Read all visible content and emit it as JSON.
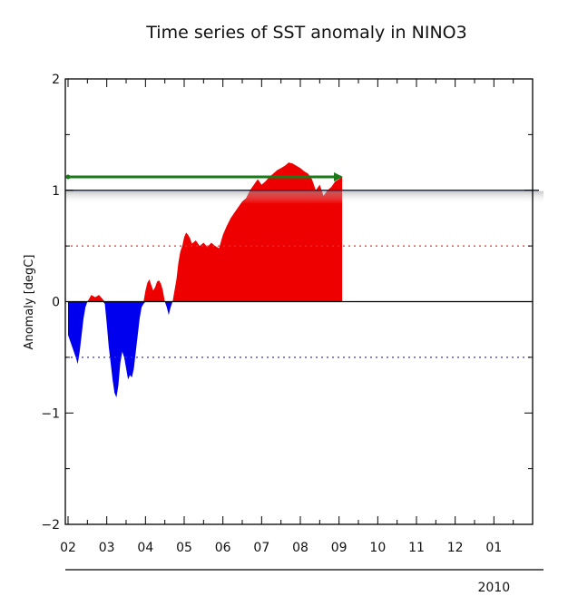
{
  "chart_data": {
    "type": "area",
    "title": "Time series of SST anomaly in NINO3",
    "xlabel": "",
    "ylabel": "Anomaly [degC]",
    "x_tick_labels": [
      "02",
      "03",
      "04",
      "05",
      "06",
      "07",
      "08",
      "09",
      "10",
      "11",
      "12",
      "01"
    ],
    "year_label": "2010",
    "y_ticks": [
      -2,
      -1,
      0,
      1,
      2
    ],
    "y_tick_labels": [
      "-2",
      "-1",
      "0",
      "1",
      "2"
    ],
    "xlim": [
      2.0,
      14.0
    ],
    "ylim": [
      -2,
      2
    ],
    "reference_lines": [
      {
        "y": 0.5,
        "style": "dotted",
        "color": "#e53030"
      },
      {
        "y": -0.5,
        "style": "dotted",
        "color": "#3030e0"
      },
      {
        "y": 1.0,
        "style": "solid",
        "color": "#1b2a50"
      }
    ],
    "arrow": {
      "x_start": 2.0,
      "x_end": 9.1,
      "y": 1.12,
      "color": "#1a7a1a"
    },
    "positive_color": "#ee0000",
    "negative_color": "#0000ee",
    "series": [
      {
        "values": [
          [
            2.0,
            -0.3
          ],
          [
            2.1,
            -0.4
          ],
          [
            2.2,
            -0.5
          ],
          [
            2.25,
            -0.56
          ],
          [
            2.3,
            -0.45
          ],
          [
            2.35,
            -0.3
          ],
          [
            2.4,
            -0.15
          ],
          [
            2.45,
            -0.05
          ],
          [
            2.5,
            0.0
          ],
          [
            2.55,
            0.03
          ],
          [
            2.6,
            0.06
          ],
          [
            2.7,
            0.04
          ],
          [
            2.8,
            0.06
          ],
          [
            2.9,
            0.02
          ],
          [
            2.95,
            -0.02
          ],
          [
            3.0,
            -0.2
          ],
          [
            3.05,
            -0.4
          ],
          [
            3.1,
            -0.55
          ],
          [
            3.15,
            -0.7
          ],
          [
            3.2,
            -0.82
          ],
          [
            3.25,
            -0.86
          ],
          [
            3.3,
            -0.75
          ],
          [
            3.35,
            -0.55
          ],
          [
            3.4,
            -0.45
          ],
          [
            3.45,
            -0.5
          ],
          [
            3.5,
            -0.6
          ],
          [
            3.55,
            -0.7
          ],
          [
            3.6,
            -0.66
          ],
          [
            3.65,
            -0.68
          ],
          [
            3.7,
            -0.6
          ],
          [
            3.75,
            -0.45
          ],
          [
            3.8,
            -0.3
          ],
          [
            3.85,
            -0.15
          ],
          [
            3.9,
            -0.05
          ],
          [
            3.95,
            -0.02
          ],
          [
            4.0,
            0.1
          ],
          [
            4.05,
            0.17
          ],
          [
            4.1,
            0.2
          ],
          [
            4.15,
            0.15
          ],
          [
            4.2,
            0.1
          ],
          [
            4.25,
            0.13
          ],
          [
            4.3,
            0.18
          ],
          [
            4.35,
            0.19
          ],
          [
            4.4,
            0.16
          ],
          [
            4.45,
            0.1
          ],
          [
            4.5,
            0.0
          ],
          [
            4.55,
            -0.05
          ],
          [
            4.6,
            -0.12
          ],
          [
            4.65,
            -0.05
          ],
          [
            4.7,
            0.0
          ],
          [
            4.75,
            0.1
          ],
          [
            4.8,
            0.2
          ],
          [
            4.85,
            0.35
          ],
          [
            4.9,
            0.45
          ],
          [
            4.95,
            0.5
          ],
          [
            5.0,
            0.58
          ],
          [
            5.05,
            0.62
          ],
          [
            5.1,
            0.6
          ],
          [
            5.15,
            0.57
          ],
          [
            5.2,
            0.52
          ],
          [
            5.3,
            0.55
          ],
          [
            5.4,
            0.5
          ],
          [
            5.5,
            0.53
          ],
          [
            5.6,
            0.49
          ],
          [
            5.7,
            0.53
          ],
          [
            5.8,
            0.5
          ],
          [
            5.9,
            0.48
          ],
          [
            6.0,
            0.6
          ],
          [
            6.1,
            0.68
          ],
          [
            6.2,
            0.75
          ],
          [
            6.3,
            0.8
          ],
          [
            6.4,
            0.85
          ],
          [
            6.5,
            0.9
          ],
          [
            6.6,
            0.93
          ],
          [
            6.7,
            1.0
          ],
          [
            6.8,
            1.05
          ],
          [
            6.9,
            1.1
          ],
          [
            7.0,
            1.05
          ],
          [
            7.1,
            1.08
          ],
          [
            7.2,
            1.12
          ],
          [
            7.3,
            1.15
          ],
          [
            7.4,
            1.18
          ],
          [
            7.5,
            1.2
          ],
          [
            7.6,
            1.22
          ],
          [
            7.7,
            1.25
          ],
          [
            7.8,
            1.24
          ],
          [
            7.9,
            1.22
          ],
          [
            8.0,
            1.2
          ],
          [
            8.1,
            1.17
          ],
          [
            8.2,
            1.15
          ],
          [
            8.3,
            1.1
          ],
          [
            8.4,
            1.0
          ],
          [
            8.5,
            1.05
          ],
          [
            8.6,
            0.95
          ],
          [
            8.7,
            1.0
          ],
          [
            8.8,
            1.03
          ],
          [
            8.9,
            1.08
          ],
          [
            9.0,
            1.1
          ],
          [
            9.08,
            1.12
          ]
        ]
      }
    ]
  }
}
